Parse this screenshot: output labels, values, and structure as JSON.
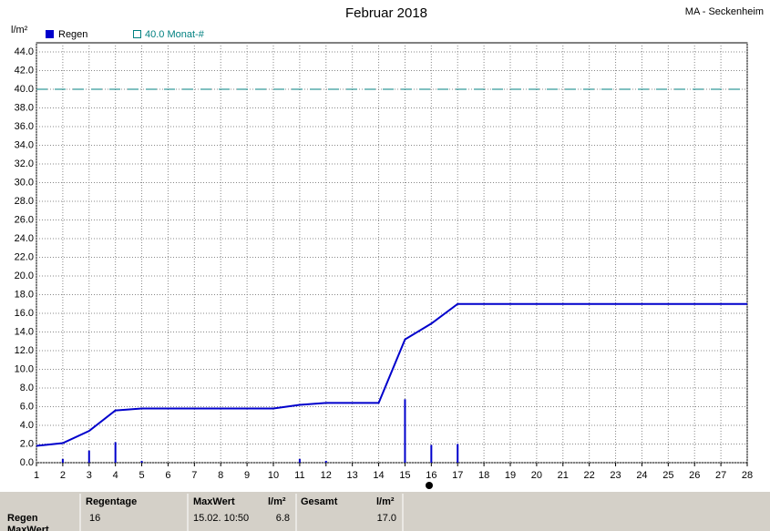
{
  "chart_data": {
    "type": "line",
    "title": "Februar 2018",
    "station": "MA - Seckenheim",
    "ylabel": "l/m²",
    "series": [
      {
        "name": "Regen",
        "type": "bar",
        "color": "#0000cc",
        "x": [
          2,
          3,
          4,
          5,
          11,
          12,
          15,
          16,
          17
        ],
        "values": [
          0.4,
          1.3,
          2.2,
          0.2,
          0.4,
          0.2,
          6.8,
          1.9,
          2.0
        ]
      },
      {
        "type": "line",
        "color": "#0000cc",
        "x": [
          1,
          2,
          3,
          4,
          5,
          10,
          11,
          12,
          14,
          15,
          16,
          17,
          28
        ],
        "values": [
          1.8,
          2.1,
          3.4,
          5.6,
          5.8,
          5.8,
          6.2,
          6.4,
          6.4,
          13.2,
          14.9,
          17.0,
          17.0
        ]
      }
    ],
    "reference": {
      "label": "40.0 Monat-#",
      "value": 40,
      "color": "#008080"
    },
    "xlim": [
      1,
      28
    ],
    "xticks": [
      1,
      2,
      3,
      4,
      5,
      6,
      7,
      8,
      9,
      10,
      11,
      12,
      13,
      14,
      15,
      16,
      17,
      18,
      19,
      20,
      21,
      22,
      23,
      24,
      25,
      26,
      27,
      28
    ],
    "ylim": [
      0,
      44
    ],
    "yticks": [
      {
        "value": 0,
        "label": "0.0"
      },
      {
        "value": 2,
        "label": "2.0"
      },
      {
        "value": 4,
        "label": "4.0"
      },
      {
        "value": 6,
        "label": "6.0"
      },
      {
        "value": 8,
        "label": "8.0"
      },
      {
        "value": 10,
        "label": "10.0"
      },
      {
        "value": 12,
        "label": "12.0"
      },
      {
        "value": 14,
        "label": "14.0"
      },
      {
        "value": 16,
        "label": "16.0"
      },
      {
        "value": 18,
        "label": "18.0"
      },
      {
        "value": 20,
        "label": "20.0"
      },
      {
        "value": 22,
        "label": "22.0"
      },
      {
        "value": 24,
        "label": "24.0"
      },
      {
        "value": 26,
        "label": "26.0"
      },
      {
        "value": 28,
        "label": "28.0"
      },
      {
        "value": 30,
        "label": "30.0"
      },
      {
        "value": 32,
        "label": "32.0"
      },
      {
        "value": 34,
        "label": "34.0"
      },
      {
        "value": 36,
        "label": "36.0"
      },
      {
        "value": 38,
        "label": "38.0"
      },
      {
        "value": 40,
        "label": "40.0"
      },
      {
        "value": 42,
        "label": "42.0"
      },
      {
        "value": 44,
        "label": "44.0"
      }
    ],
    "grid": true
  },
  "table": {
    "header": [
      "Regentage",
      "MaxWert",
      "l/m²",
      "Gesamt",
      "l/m²"
    ],
    "rows": [
      [
        "Regen",
        "16",
        "15.02.  10:50",
        "6.8",
        "17.0"
      ],
      [
        "MaxWert"
      ]
    ]
  }
}
